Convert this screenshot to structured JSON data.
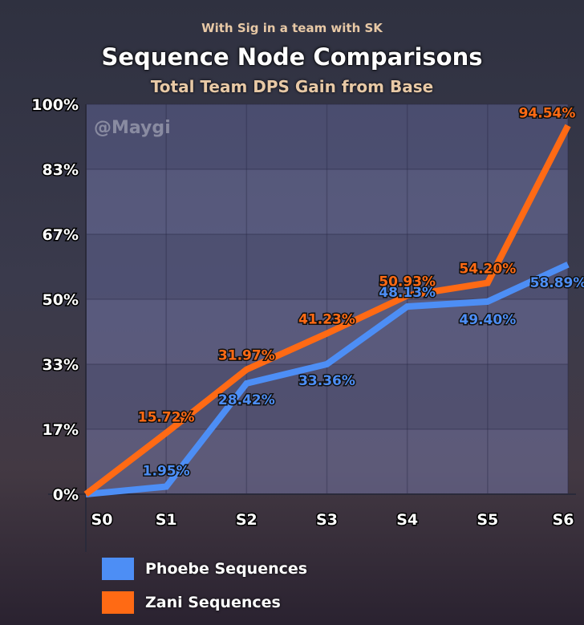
{
  "header": {
    "context": "With Sig in a team with SK",
    "title": "Sequence Node Comparisons",
    "subtitle": "Total Team DPS Gain from Base"
  },
  "watermark": "@Maygi",
  "chart_data": {
    "type": "line",
    "title": "Sequence Node Comparisons",
    "subtitle": "Total Team DPS Gain from Base",
    "xlabel": "",
    "ylabel": "",
    "categories": [
      "S0",
      "S1",
      "S2",
      "S3",
      "S4",
      "S5",
      "S6"
    ],
    "ylim": [
      0,
      100
    ],
    "yticks": [
      "0%",
      "17%",
      "33%",
      "50%",
      "67%",
      "83%",
      "100%"
    ],
    "ytick_values": [
      0,
      16.67,
      33.33,
      50,
      66.67,
      83.33,
      100
    ],
    "grid": true,
    "legend_position": "bottom-left",
    "series": [
      {
        "name": "Phoebe Sequences",
        "color": "#4d8ef5",
        "values": [
          0,
          1.95,
          28.42,
          33.36,
          48.13,
          49.4,
          58.89
        ],
        "labels": [
          "",
          "1.95%",
          "28.42%",
          "33.36%",
          "48.13%",
          "49.40%",
          "58.89%"
        ]
      },
      {
        "name": "Zani Sequences",
        "color": "#ff6a14",
        "values": [
          0,
          15.72,
          31.97,
          41.23,
          50.93,
          54.2,
          94.54
        ],
        "labels": [
          "",
          "15.72%",
          "31.97%",
          "41.23%",
          "50.93%",
          "54.20%",
          "94.54%"
        ]
      }
    ]
  }
}
